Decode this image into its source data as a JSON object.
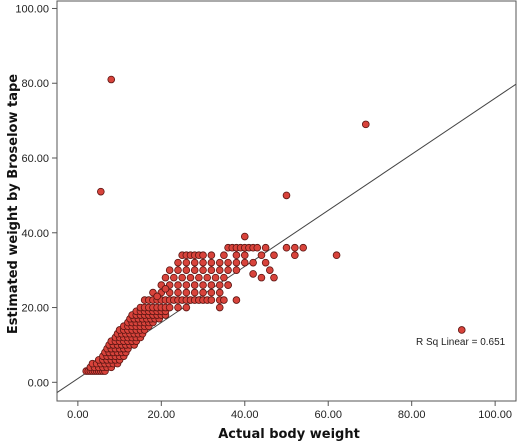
{
  "chart_data": {
    "type": "scatter",
    "title": "",
    "xlabel": "Actual body weight",
    "ylabel": "Estimated weight by Broselow tape",
    "xlim": [
      -5,
      105
    ],
    "ylim": [
      -5,
      102
    ],
    "xticks": [
      0,
      20,
      40,
      60,
      80,
      100
    ],
    "yticks": [
      0,
      20,
      40,
      60,
      80,
      100
    ],
    "xtick_labels": [
      "0.00",
      "20.00",
      "40.00",
      "60.00",
      "80.00",
      "100.00"
    ],
    "ytick_labels": [
      "0.00",
      "20.00",
      "40.00",
      "60.00",
      "80.00",
      "100.00"
    ],
    "grid": false,
    "legend": "none",
    "colors": {
      "point_fill": "#d8433b",
      "point_edge": "#5a1512",
      "line": "#444444",
      "frame": "#555555"
    },
    "annotation": "R Sq Linear = 0.651",
    "fit_line": {
      "slope": 0.75,
      "intercept": 1.0
    },
    "series": [
      {
        "points": [
          [
            2,
            3
          ],
          [
            2.5,
            3
          ],
          [
            3,
            3
          ],
          [
            3.5,
            3
          ],
          [
            4,
            3
          ],
          [
            4.5,
            3
          ],
          [
            5,
            3
          ],
          [
            5.5,
            3
          ],
          [
            6,
            3
          ],
          [
            6.5,
            3
          ],
          [
            3,
            4
          ],
          [
            4,
            4
          ],
          [
            5,
            4
          ],
          [
            6,
            4
          ],
          [
            7,
            4
          ],
          [
            8,
            4
          ],
          [
            3.5,
            5
          ],
          [
            4.5,
            5
          ],
          [
            5.5,
            5
          ],
          [
            6.5,
            5
          ],
          [
            7.5,
            5
          ],
          [
            8.5,
            5
          ],
          [
            9.5,
            5
          ],
          [
            5,
            6
          ],
          [
            6,
            6
          ],
          [
            7,
            6
          ],
          [
            8,
            6
          ],
          [
            9,
            6
          ],
          [
            10,
            6
          ],
          [
            6,
            7
          ],
          [
            7,
            7
          ],
          [
            8,
            7
          ],
          [
            9,
            7
          ],
          [
            10,
            7
          ],
          [
            11,
            7
          ],
          [
            6.5,
            8
          ],
          [
            7.5,
            8
          ],
          [
            8.5,
            8
          ],
          [
            9.5,
            8
          ],
          [
            10.5,
            8
          ],
          [
            11.5,
            8
          ],
          [
            7,
            9
          ],
          [
            8,
            9
          ],
          [
            9,
            9
          ],
          [
            10,
            9
          ],
          [
            11,
            9
          ],
          [
            12,
            9
          ],
          [
            7.5,
            10
          ],
          [
            8.5,
            10
          ],
          [
            9.5,
            10
          ],
          [
            10.5,
            10
          ],
          [
            11.5,
            10
          ],
          [
            12.5,
            10
          ],
          [
            13.5,
            10
          ],
          [
            8,
            11
          ],
          [
            9,
            11
          ],
          [
            10,
            11
          ],
          [
            11,
            11
          ],
          [
            12,
            11
          ],
          [
            13,
            11
          ],
          [
            14,
            11
          ],
          [
            9,
            12
          ],
          [
            10,
            12
          ],
          [
            11,
            12
          ],
          [
            12,
            12
          ],
          [
            13,
            12
          ],
          [
            14,
            12
          ],
          [
            15,
            12
          ],
          [
            9.5,
            13
          ],
          [
            10.5,
            13
          ],
          [
            11.5,
            13
          ],
          [
            12.5,
            13
          ],
          [
            13.5,
            13
          ],
          [
            14.5,
            13
          ],
          [
            15.5,
            13
          ],
          [
            10,
            14
          ],
          [
            11,
            14
          ],
          [
            12,
            14
          ],
          [
            13,
            14
          ],
          [
            14,
            14
          ],
          [
            15,
            14
          ],
          [
            16,
            14
          ],
          [
            11,
            15
          ],
          [
            12,
            15
          ],
          [
            13,
            15
          ],
          [
            14,
            15
          ],
          [
            15,
            15
          ],
          [
            16,
            15
          ],
          [
            17,
            15
          ],
          [
            12,
            16
          ],
          [
            13,
            16
          ],
          [
            14,
            16
          ],
          [
            15,
            16
          ],
          [
            16,
            16
          ],
          [
            17,
            16
          ],
          [
            18,
            16
          ],
          [
            12.5,
            17
          ],
          [
            13.5,
            17
          ],
          [
            14.5,
            17
          ],
          [
            15.5,
            17
          ],
          [
            16.5,
            17
          ],
          [
            17.5,
            17
          ],
          [
            18.5,
            17
          ],
          [
            19.5,
            17
          ],
          [
            13,
            18
          ],
          [
            14,
            18
          ],
          [
            15,
            18
          ],
          [
            16,
            18
          ],
          [
            17,
            18
          ],
          [
            18,
            18
          ],
          [
            19,
            18
          ],
          [
            20,
            18
          ],
          [
            21,
            18
          ],
          [
            14,
            19
          ],
          [
            15,
            19
          ],
          [
            16,
            19
          ],
          [
            17,
            19
          ],
          [
            18,
            19
          ],
          [
            19,
            19
          ],
          [
            20,
            19
          ],
          [
            21,
            19
          ],
          [
            15,
            20
          ],
          [
            16,
            20
          ],
          [
            17,
            20
          ],
          [
            18,
            20
          ],
          [
            19,
            20
          ],
          [
            20,
            20
          ],
          [
            21,
            20
          ],
          [
            22,
            20
          ],
          [
            24,
            20
          ],
          [
            26,
            20
          ],
          [
            16,
            22
          ],
          [
            17,
            22
          ],
          [
            18,
            22
          ],
          [
            19,
            22
          ],
          [
            20,
            22
          ],
          [
            21,
            22
          ],
          [
            22,
            22
          ],
          [
            23,
            22
          ],
          [
            24,
            22
          ],
          [
            25,
            22
          ],
          [
            26,
            22
          ],
          [
            27,
            22
          ],
          [
            28,
            22
          ],
          [
            29,
            22
          ],
          [
            30,
            22
          ],
          [
            31,
            22
          ],
          [
            32,
            22
          ],
          [
            34,
            22
          ],
          [
            35,
            22
          ],
          [
            18,
            24
          ],
          [
            20,
            24
          ],
          [
            22,
            24
          ],
          [
            24,
            24
          ],
          [
            26,
            24
          ],
          [
            28,
            24
          ],
          [
            30,
            24
          ],
          [
            32,
            24
          ],
          [
            34,
            24
          ],
          [
            20,
            26
          ],
          [
            22,
            26
          ],
          [
            24,
            26
          ],
          [
            26,
            26
          ],
          [
            28,
            26
          ],
          [
            30,
            26
          ],
          [
            32,
            26
          ],
          [
            34,
            26
          ],
          [
            36,
            26
          ],
          [
            21,
            28
          ],
          [
            23,
            28
          ],
          [
            25,
            28
          ],
          [
            27,
            28
          ],
          [
            29,
            28
          ],
          [
            31,
            28
          ],
          [
            33,
            28
          ],
          [
            35,
            28
          ],
          [
            22,
            30
          ],
          [
            24,
            30
          ],
          [
            26,
            30
          ],
          [
            28,
            30
          ],
          [
            30,
            30
          ],
          [
            32,
            30
          ],
          [
            34,
            30
          ],
          [
            36,
            30
          ],
          [
            38,
            30
          ],
          [
            24,
            32
          ],
          [
            26,
            32
          ],
          [
            28,
            32
          ],
          [
            30,
            32
          ],
          [
            32,
            32
          ],
          [
            34,
            32
          ],
          [
            36,
            32
          ],
          [
            38,
            32
          ],
          [
            40,
            32
          ],
          [
            42,
            32
          ],
          [
            45,
            32
          ],
          [
            25,
            34
          ],
          [
            26,
            34
          ],
          [
            27,
            34
          ],
          [
            28,
            34
          ],
          [
            29,
            34
          ],
          [
            30,
            34
          ],
          [
            32,
            34
          ],
          [
            35,
            34
          ],
          [
            38,
            34
          ],
          [
            40,
            34
          ],
          [
            44,
            34
          ],
          [
            47,
            34
          ],
          [
            52,
            34
          ],
          [
            62,
            34
          ],
          [
            36,
            36
          ],
          [
            37,
            36
          ],
          [
            38,
            36
          ],
          [
            39,
            36
          ],
          [
            40,
            36
          ],
          [
            41,
            36
          ],
          [
            42,
            36
          ],
          [
            43,
            36
          ],
          [
            45,
            36
          ],
          [
            50,
            36
          ],
          [
            52,
            36
          ],
          [
            54,
            36
          ],
          [
            40,
            39
          ],
          [
            46,
            30
          ],
          [
            44,
            28
          ],
          [
            47,
            28
          ],
          [
            42,
            29
          ],
          [
            36,
            26
          ],
          [
            38,
            22
          ],
          [
            34,
            20
          ],
          [
            21,
            25
          ],
          [
            19,
            23
          ],
          [
            5.5,
            51
          ],
          [
            8,
            81
          ],
          [
            50,
            50
          ],
          [
            69,
            69
          ],
          [
            92,
            14
          ]
        ]
      }
    ]
  }
}
